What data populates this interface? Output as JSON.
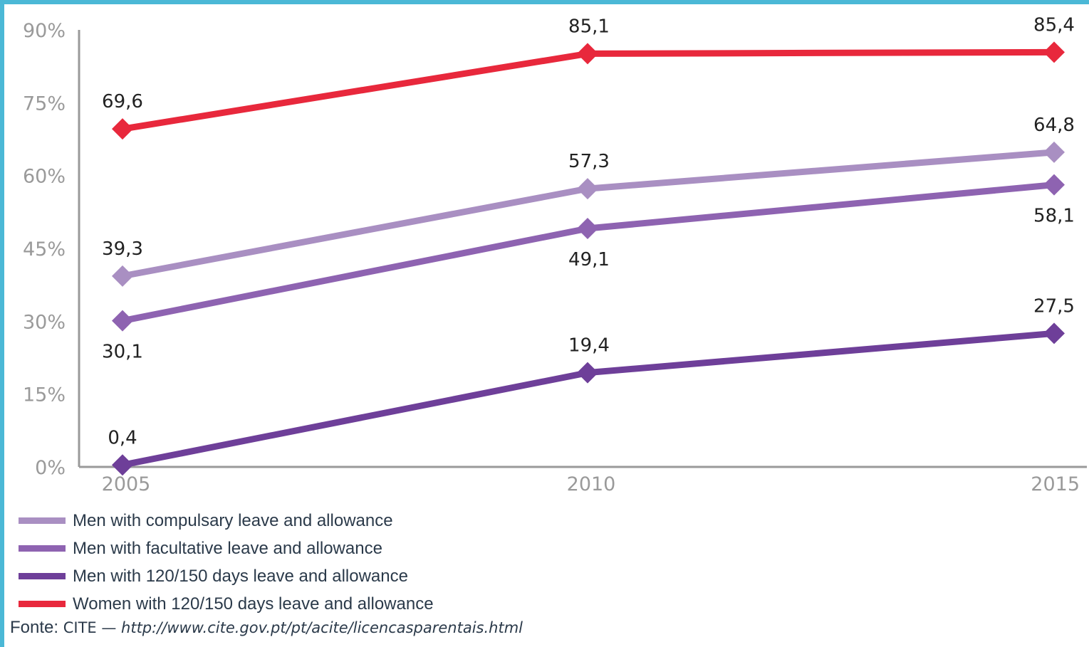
{
  "chart_data": {
    "type": "line",
    "x": [
      "2005",
      "2010",
      "2015"
    ],
    "ylim": [
      0,
      90
    ],
    "yticks": [
      "0%",
      "15%",
      "30%",
      "45%",
      "60%",
      "75%",
      "90%"
    ],
    "ytick_values": [
      0,
      15,
      30,
      45,
      60,
      75,
      90
    ],
    "grid": false,
    "legend_position": "bottom-left",
    "series": [
      {
        "name": "Men with compulsary leave and allowance",
        "color": "#a98fc2",
        "values": [
          39.3,
          57.3,
          64.8
        ],
        "labels": [
          "39,3",
          "57,3",
          "64,8"
        ],
        "label_side": [
          "above",
          "above",
          "above"
        ]
      },
      {
        "name": "Men with facultative leave and allowance",
        "color": "#8e63b1",
        "values": [
          30.1,
          49.1,
          58.1
        ],
        "labels": [
          "30,1",
          "49,1",
          "58,1"
        ],
        "label_side": [
          "below",
          "below",
          "below"
        ]
      },
      {
        "name": "Men with 120/150 days leave and allowance",
        "color": "#6e3f99",
        "values": [
          0.4,
          19.4,
          27.5
        ],
        "labels": [
          "0,4",
          "19,4",
          "27,5"
        ],
        "label_side": [
          "above",
          "above",
          "above"
        ]
      },
      {
        "name": "Women with 120/150 days leave and allowance",
        "color": "#e8283c",
        "values": [
          69.6,
          85.1,
          85.4
        ],
        "labels": [
          "69,6",
          "85,1",
          "85,4"
        ],
        "label_side": [
          "above",
          "above",
          "above"
        ]
      }
    ]
  },
  "source": {
    "label": "Fonte:",
    "org": " CITE — ",
    "url": "http://www.cite.gov.pt/pt/acite/licencasparentais.html"
  }
}
